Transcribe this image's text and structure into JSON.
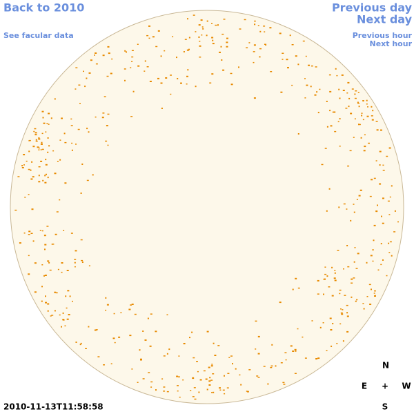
{
  "links": {
    "back": "Back to 2010",
    "facular": "See facular data",
    "previous_day": "Previous day",
    "next_day": "Next day",
    "previous_hour": "Previous hour",
    "next_hour": "Next hour"
  },
  "timestamp": "2010-11-13T11:58:58",
  "compass": {
    "north": "N",
    "east": "E",
    "center": "+",
    "west": "W",
    "south": "S"
  }
}
